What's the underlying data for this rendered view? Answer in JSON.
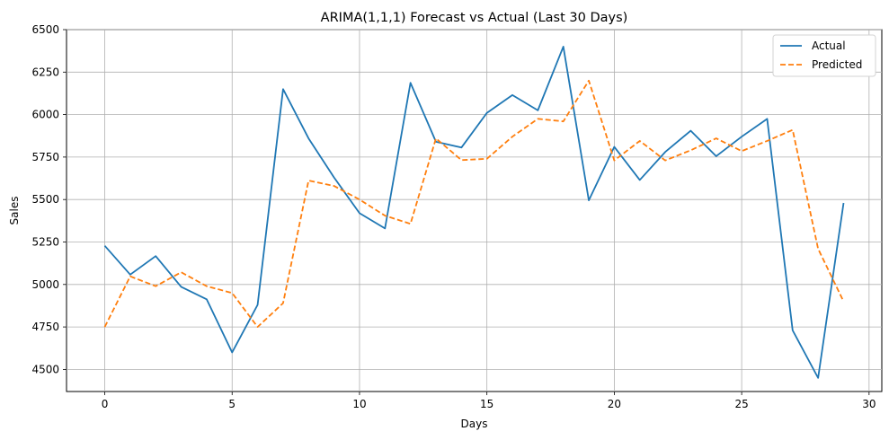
{
  "chart_data": {
    "type": "line",
    "title": "ARIMA(1,1,1) Forecast vs Actual (Last 30 Days)",
    "xlabel": "Days",
    "ylabel": "Sales",
    "xlim": [
      -1.5,
      30.5
    ],
    "ylim": [
      4370,
      6500
    ],
    "xticks": [
      0,
      5,
      10,
      15,
      20,
      25,
      30
    ],
    "yticks": [
      4500,
      4750,
      5000,
      5250,
      5500,
      5750,
      6000,
      6250,
      6500
    ],
    "grid": true,
    "legend_position": "upper right",
    "x": [
      0,
      1,
      2,
      3,
      4,
      5,
      6,
      7,
      8,
      9,
      10,
      11,
      12,
      13,
      14,
      15,
      16,
      17,
      18,
      19,
      20,
      21,
      22,
      23,
      24,
      25,
      26,
      27,
      28,
      29
    ],
    "series": [
      {
        "name": "Actual",
        "color": "#1f77b4",
        "style": "solid",
        "values": [
          5228,
          5058,
          5167,
          4986,
          4913,
          4600,
          4880,
          6150,
          5860,
          5630,
          5420,
          5330,
          6187,
          5840,
          5806,
          6010,
          6115,
          6025,
          6400,
          5495,
          5810,
          5615,
          5780,
          5905,
          5755,
          5870,
          5975,
          4730,
          4450,
          5480
        ]
      },
      {
        "name": "Predicted",
        "color": "#ff7f0e",
        "style": "dashed",
        "values": [
          4750,
          5048,
          4990,
          5072,
          4990,
          4950,
          4750,
          4890,
          5612,
          5580,
          5500,
          5405,
          5357,
          5860,
          5732,
          5740,
          5870,
          5975,
          5960,
          6200,
          5730,
          5845,
          5730,
          5790,
          5860,
          5785,
          5845,
          5910,
          5210,
          4900
        ]
      }
    ]
  }
}
